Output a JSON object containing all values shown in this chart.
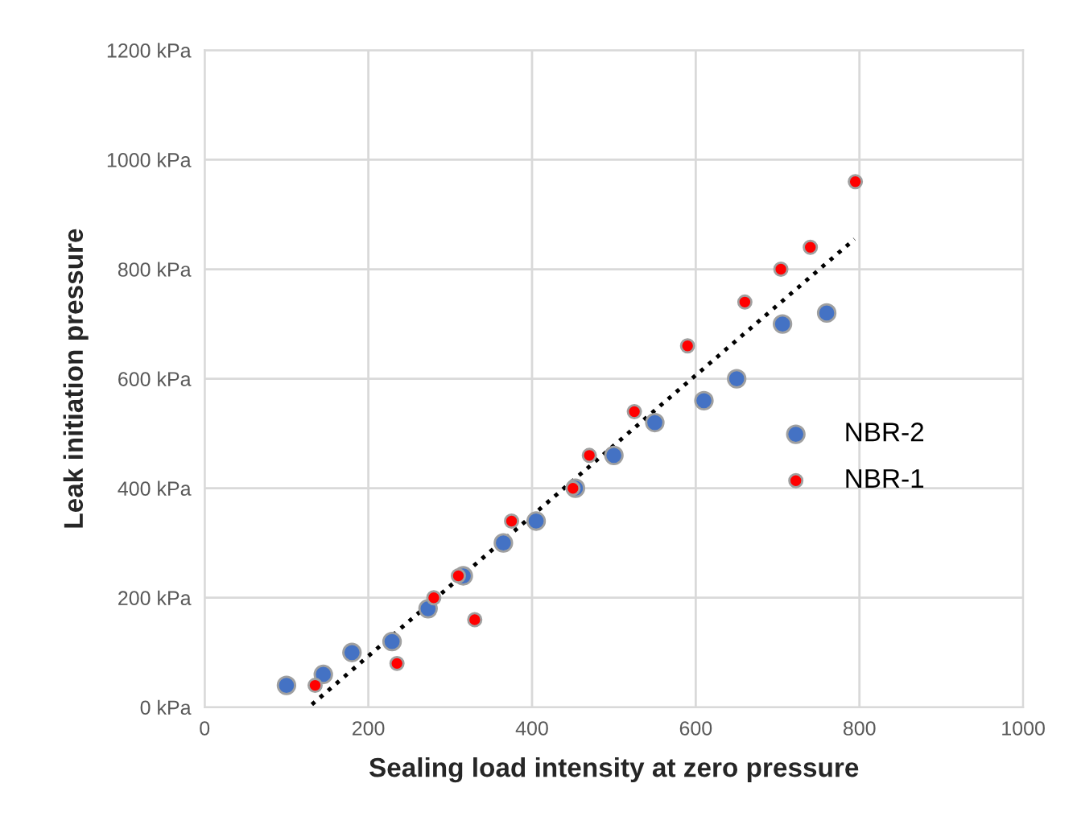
{
  "chart_data": {
    "type": "scatter",
    "xlabel": "Sealing load intensity at zero pressure",
    "ylabel": "Leak initiation pressure",
    "xlim": [
      0,
      1000
    ],
    "xticks": [
      0,
      200,
      400,
      600,
      800,
      1000
    ],
    "ylim": [
      0,
      1200
    ],
    "yticks": [
      {
        "value": 0,
        "label": "0 kPa"
      },
      {
        "value": 200,
        "label": "200 kPa"
      },
      {
        "value": 400,
        "label": "400 kPa"
      },
      {
        "value": 600,
        "label": "600 kPa"
      },
      {
        "value": 800,
        "label": "800 kPa"
      },
      {
        "value": 1000,
        "label": "1000 kPa"
      },
      {
        "value": 1200,
        "label": "1200 kPa"
      }
    ],
    "grid": true,
    "legend": "right",
    "marker": "circle",
    "series": [
      {
        "name": "NBR-2",
        "color": "#4472c4",
        "x": [
          100,
          145,
          180,
          229,
          273,
          316,
          365,
          405,
          453,
          500,
          550,
          610,
          650,
          706,
          760
        ],
        "values": [
          40,
          60,
          100,
          120,
          180,
          240,
          300,
          340,
          400,
          460,
          520,
          560,
          600,
          700,
          720
        ]
      },
      {
        "name": "NBR-1",
        "color": "#ff0000",
        "x": [
          135,
          235,
          280,
          310,
          330,
          375,
          450,
          470,
          525,
          590,
          660,
          704,
          740,
          795
        ],
        "values": [
          40,
          80,
          200,
          240,
          160,
          340,
          400,
          460,
          540,
          660,
          740,
          800,
          840,
          960
        ]
      },
      {
        "type": "line",
        "color": "#000000",
        "line_style": "dotted",
        "marker": "none",
        "x": [
          131,
          794
        ],
        "values": [
          5,
          855
        ]
      }
    ]
  }
}
